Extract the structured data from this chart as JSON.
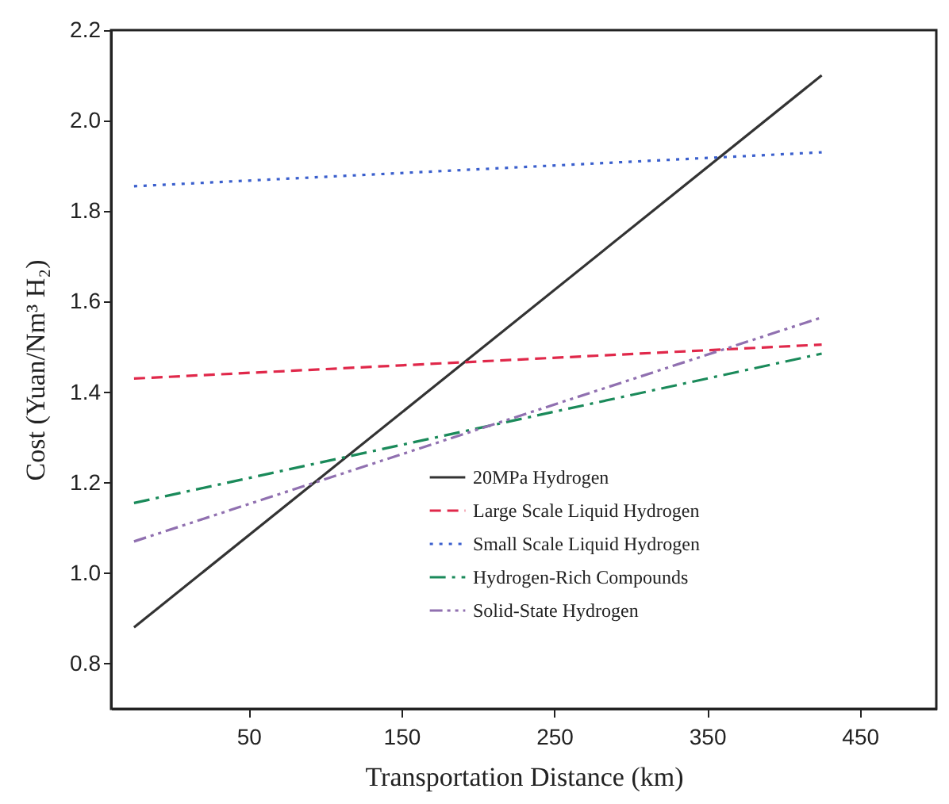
{
  "chart_data": {
    "type": "line",
    "xlabel": "Transportation Distance (km)",
    "ylabel": "Cost (Yuan/Nm³ H₂)",
    "xlim": [
      -40,
      500
    ],
    "xticks": [
      50,
      150,
      250,
      350,
      450
    ],
    "ylim": [
      0.7,
      2.2
    ],
    "yticks": [
      0.8,
      {
        "value": 1,
        "label": "1.0"
      },
      1.2,
      1.4,
      1.6,
      1.8,
      {
        "value": 2,
        "label": "2.0"
      },
      2.2
    ],
    "grid": false,
    "legend": "bottom right",
    "marker": "none",
    "x": [
      -25,
      425
    ],
    "series": [
      {
        "name": "20MPa Hydrogen",
        "color": "#333333",
        "line_style": "solid",
        "values": [
          0.88,
          2.1
        ]
      },
      {
        "name": "Large Scale Liquid Hydrogen",
        "color": "#e0284a",
        "line_style": "dashed",
        "values": [
          1.43,
          1.505
        ]
      },
      {
        "name": "Small Scale Liquid Hydrogen",
        "color": "#3a5fcd",
        "line_style": "dotted",
        "values": [
          1.855,
          1.93
        ]
      },
      {
        "name": "Hydrogen-Rich Compounds",
        "color": "#1a8a5a",
        "line_style": "dashdot",
        "values": [
          1.155,
          1.485
        ]
      },
      {
        "name": "Solid-State Hydrogen",
        "color": "#9070b0",
        "line_style": "dashdotdot",
        "values": [
          1.07,
          1.565
        ]
      }
    ]
  }
}
